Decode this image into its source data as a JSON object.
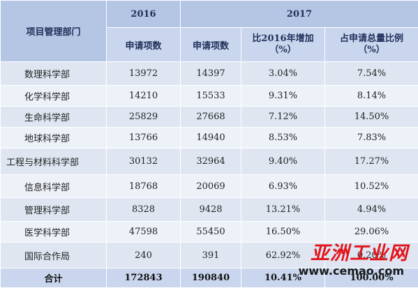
{
  "header": {
    "dept": "项目管理部门",
    "year2016": "2016",
    "year2017": "2017",
    "col_2016_count": "申请项数",
    "col_2017_count": "申请项数",
    "col_increase_l1": "比2016年增加",
    "col_increase_l2": "（%）",
    "col_share_l1": "占申请总量比例",
    "col_share_l2": "（%）"
  },
  "rows": [
    {
      "dept": "数理科学部",
      "c2016": "13972",
      "c2017": "14397",
      "inc": "3.04%",
      "share": "7.54%"
    },
    {
      "dept": "化学科学部",
      "c2016": "14210",
      "c2017": "15533",
      "inc": "9.31%",
      "share": "8.14%"
    },
    {
      "dept": "生命科学部",
      "c2016": "25829",
      "c2017": "27668",
      "inc": "7.12%",
      "share": "14.50%"
    },
    {
      "dept": "地球科学部",
      "c2016": "13766",
      "c2017": "14940",
      "inc": "8.53%",
      "share": "7.83%"
    },
    {
      "dept": "工程与材料科学部",
      "c2016": "30132",
      "c2017": "32964",
      "inc": "9.40%",
      "share": "17.27%"
    },
    {
      "dept": "信息科学部",
      "c2016": "18768",
      "c2017": "20069",
      "inc": "6.93%",
      "share": "10.52%"
    },
    {
      "dept": "管理科学部",
      "c2016": "8328",
      "c2017": "9428",
      "inc": "13.21%",
      "share": "4.94%"
    },
    {
      "dept": "医学科学部",
      "c2016": "47598",
      "c2017": "55450",
      "inc": "16.50%",
      "share": "29.06%"
    },
    {
      "dept": "国际合作局",
      "c2016": "240",
      "c2017": "391",
      "inc": "62.92%",
      "share": "0.20%"
    }
  ],
  "total": {
    "dept": "合计",
    "c2016": "172843",
    "c2017": "190840",
    "inc": "10.41%",
    "share": "100.00%"
  },
  "watermark": {
    "title": "亚洲工业网",
    "url": "www.cemao.com"
  }
}
